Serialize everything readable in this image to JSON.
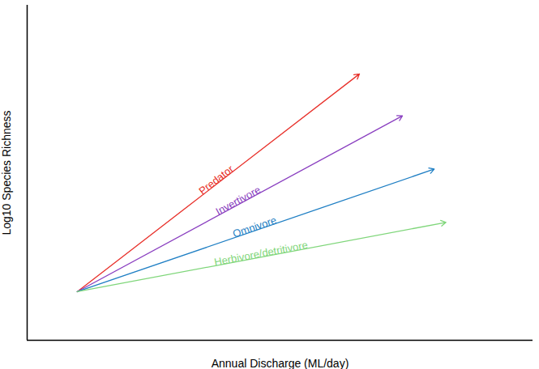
{
  "chart_data": {
    "type": "line",
    "x_label": "Annual Discharge (ML/day)",
    "y_label": "Log10 Species Richness",
    "series": [
      {
        "name": "Predator",
        "color": "#e8302a",
        "x": [
          9.9,
          65.7
        ],
        "values": [
          14.5,
          79.5
        ]
      },
      {
        "name": "Invertivore",
        "color": "#8a3fc0",
        "x": [
          9.9,
          74.2
        ],
        "values": [
          14.5,
          67.0
        ]
      },
      {
        "name": "Omnivore",
        "color": "#1f7fc4",
        "x": [
          9.9,
          80.5
        ],
        "values": [
          14.5,
          51.1
        ]
      },
      {
        "name": "Herbivore/detritivore",
        "color": "#7fd67a",
        "x": [
          9.9,
          82.8
        ],
        "values": [
          14.5,
          35.2
        ]
      }
    ],
    "xlim": [
      0,
      100
    ],
    "ylim": [
      0,
      100
    ],
    "xticks": [],
    "yticks": [],
    "tick_labels": false,
    "grid": false,
    "marker": "arrow",
    "line_style": "solid"
  }
}
